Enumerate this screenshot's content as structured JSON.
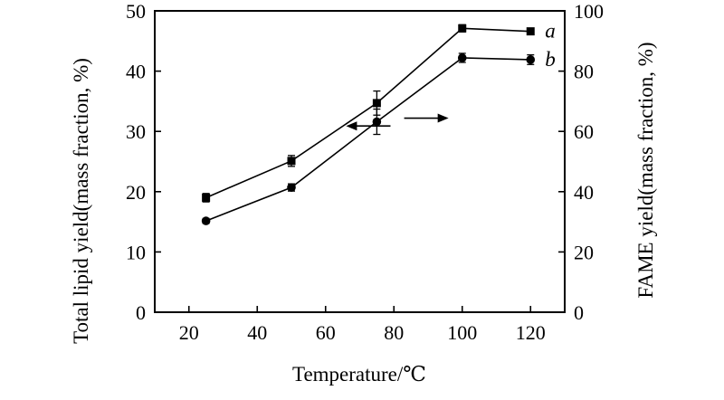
{
  "chart_data": {
    "type": "line",
    "xlabel": "Temperature/℃",
    "ylabel_left": "Total lipid yield(mass fraction, %)",
    "ylabel_right": "FAME yield(mass fraction, %)",
    "xlim": [
      10,
      130
    ],
    "ylim_left": [
      0,
      50
    ],
    "ylim_right": [
      0,
      100
    ],
    "x_ticks": [
      20,
      40,
      60,
      80,
      100,
      120
    ],
    "y_ticks_left": [
      0,
      10,
      20,
      30,
      40,
      50
    ],
    "y_ticks_right": [
      0,
      20,
      40,
      60,
      80,
      100
    ],
    "grid": false,
    "legend": "none",
    "x": [
      25,
      50,
      75,
      100,
      120
    ],
    "series": [
      {
        "label": "a",
        "axis": "left",
        "marker": "square",
        "values": [
          19.0,
          25.1,
          34.7,
          47.1,
          46.6
        ],
        "errors": [
          0.7,
          0.9,
          2.0,
          0.6,
          0
        ]
      },
      {
        "label": "b",
        "axis": "right",
        "marker": "circle",
        "values": [
          30.3,
          41.4,
          63.2,
          84.4,
          83.8
        ],
        "errors": [
          0.8,
          1.2,
          4.2,
          1.5,
          1.6
        ]
      }
    ],
    "annotations": [
      {
        "type": "arrow",
        "direction": "left",
        "meaning": "series a refers to left axis"
      },
      {
        "type": "arrow",
        "direction": "right",
        "meaning": "series b refers to right axis"
      }
    ]
  }
}
